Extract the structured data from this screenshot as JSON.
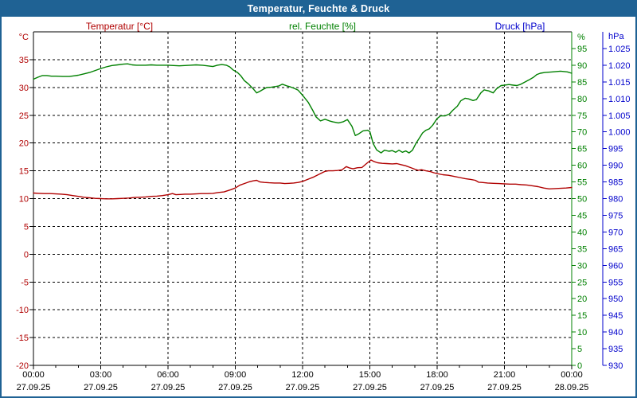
{
  "window": {
    "title": "Temperatur, Feuchte & Druck"
  },
  "legend": {
    "temperature": "Temperatur [°C]",
    "humidity": "rel. Feuchte [%]",
    "pressure": "Druck [hPa]"
  },
  "axes": {
    "temperature": {
      "unit": "°C",
      "color": "#B00000",
      "min": -20,
      "max": 40,
      "ticks": [
        {
          "label": "35",
          "value": 35
        },
        {
          "label": "30",
          "value": 30
        },
        {
          "label": "25",
          "value": 25
        },
        {
          "label": "20",
          "value": 20
        },
        {
          "label": "15",
          "value": 15
        },
        {
          "label": "10",
          "value": 10
        },
        {
          "label": "5",
          "value": 5
        },
        {
          "label": "0",
          "value": 0
        },
        {
          "label": "-5",
          "value": -5
        },
        {
          "label": "-10",
          "value": -10
        },
        {
          "label": "-15",
          "value": -15
        },
        {
          "label": "-20",
          "value": -20
        }
      ]
    },
    "humidity": {
      "unit": "%",
      "color": "#008000",
      "min": 0,
      "max": 100,
      "ticks": [
        {
          "label": "95",
          "value": 95
        },
        {
          "label": "90",
          "value": 90
        },
        {
          "label": "85",
          "value": 85
        },
        {
          "label": "80",
          "value": 80
        },
        {
          "label": "75",
          "value": 75
        },
        {
          "label": "70",
          "value": 70
        },
        {
          "label": "65",
          "value": 65
        },
        {
          "label": "60",
          "value": 60
        },
        {
          "label": "55",
          "value": 55
        },
        {
          "label": "50",
          "value": 50
        },
        {
          "label": "45",
          "value": 45
        },
        {
          "label": "40",
          "value": 40
        },
        {
          "label": "35",
          "value": 35
        },
        {
          "label": "30",
          "value": 30
        },
        {
          "label": "25",
          "value": 25
        },
        {
          "label": "20",
          "value": 20
        },
        {
          "label": "15",
          "value": 15
        },
        {
          "label": "10",
          "value": 10
        },
        {
          "label": "5",
          "value": 5
        },
        {
          "label": "0",
          "value": 0
        }
      ]
    },
    "pressure": {
      "unit": "hPa",
      "color": "#0000CC",
      "min": 930,
      "max": 1030,
      "ticks": [
        {
          "label": "1.025",
          "value": 1025
        },
        {
          "label": "1.020",
          "value": 1020
        },
        {
          "label": "1.015",
          "value": 1015
        },
        {
          "label": "1.010",
          "value": 1010
        },
        {
          "label": "1.005",
          "value": 1005
        },
        {
          "label": "1.000",
          "value": 1000
        },
        {
          "label": "995",
          "value": 995
        },
        {
          "label": "990",
          "value": 990
        },
        {
          "label": "985",
          "value": 985
        },
        {
          "label": "980",
          "value": 980
        },
        {
          "label": "975",
          "value": 975
        },
        {
          "label": "970",
          "value": 970
        },
        {
          "label": "965",
          "value": 965
        },
        {
          "label": "960",
          "value": 960
        },
        {
          "label": "955",
          "value": 955
        },
        {
          "label": "950",
          "value": 950
        },
        {
          "label": "945",
          "value": 945
        },
        {
          "label": "940",
          "value": 940
        },
        {
          "label": "935",
          "value": 935
        },
        {
          "label": "930",
          "value": 930
        }
      ]
    },
    "time": {
      "ticks": [
        {
          "label": "00:00",
          "date": "27.09.25",
          "hour": 0
        },
        {
          "label": "03:00",
          "date": "27.09.25",
          "hour": 3
        },
        {
          "label": "06:00",
          "date": "27.09.25",
          "hour": 6
        },
        {
          "label": "09:00",
          "date": "27.09.25",
          "hour": 9
        },
        {
          "label": "12:00",
          "date": "27.09.25",
          "hour": 12
        },
        {
          "label": "15:00",
          "date": "27.09.25",
          "hour": 15
        },
        {
          "label": "18:00",
          "date": "27.09.25",
          "hour": 18
        },
        {
          "label": "21:00",
          "date": "27.09.25",
          "hour": 21
        },
        {
          "label": "00:00",
          "date": "28.09.25",
          "hour": 24
        }
      ]
    }
  },
  "chart_data": {
    "type": "line",
    "title": "Temperatur, Feuchte & Druck",
    "x_axis": "time of day in hours, 27.09.25 00:00 to 28.09.25 00:00",
    "grid": true,
    "series": [
      {
        "name": "Temperatur",
        "unit": "°C",
        "axis": "temperature",
        "color": "#B00000",
        "points": [
          [
            0,
            11.0
          ],
          [
            0.25,
            10.95
          ],
          [
            0.5,
            10.9
          ],
          [
            0.75,
            10.9
          ],
          [
            1,
            10.85
          ],
          [
            1.25,
            10.8
          ],
          [
            1.5,
            10.7
          ],
          [
            1.75,
            10.55
          ],
          [
            2,
            10.4
          ],
          [
            2.25,
            10.25
          ],
          [
            2.5,
            10.15
          ],
          [
            2.75,
            10.05
          ],
          [
            3,
            10.0
          ],
          [
            3.25,
            9.95
          ],
          [
            3.5,
            9.95
          ],
          [
            3.75,
            10.0
          ],
          [
            4,
            10.05
          ],
          [
            4.25,
            10.1
          ],
          [
            4.5,
            10.2
          ],
          [
            4.75,
            10.25
          ],
          [
            5,
            10.3
          ],
          [
            5.25,
            10.4
          ],
          [
            5.5,
            10.45
          ],
          [
            5.75,
            10.55
          ],
          [
            6,
            10.7
          ],
          [
            6.2,
            10.9
          ],
          [
            6.35,
            10.7
          ],
          [
            6.55,
            10.75
          ],
          [
            6.75,
            10.8
          ],
          [
            7,
            10.8
          ],
          [
            7.25,
            10.85
          ],
          [
            7.5,
            10.9
          ],
          [
            7.75,
            10.9
          ],
          [
            8,
            10.95
          ],
          [
            8.25,
            11.1
          ],
          [
            8.5,
            11.2
          ],
          [
            8.65,
            11.4
          ],
          [
            8.8,
            11.6
          ],
          [
            9,
            11.9
          ],
          [
            9.2,
            12.4
          ],
          [
            9.4,
            12.7
          ],
          [
            9.6,
            13.0
          ],
          [
            9.8,
            13.2
          ],
          [
            9.95,
            13.3
          ],
          [
            10.1,
            13.0
          ],
          [
            10.3,
            12.9
          ],
          [
            10.5,
            12.85
          ],
          [
            10.75,
            12.8
          ],
          [
            11,
            12.8
          ],
          [
            11.2,
            12.7
          ],
          [
            11.4,
            12.75
          ],
          [
            11.6,
            12.8
          ],
          [
            11.8,
            12.9
          ],
          [
            12,
            13.1
          ],
          [
            12.25,
            13.5
          ],
          [
            12.5,
            13.9
          ],
          [
            12.75,
            14.4
          ],
          [
            13,
            14.9
          ],
          [
            13.15,
            15.0
          ],
          [
            13.35,
            15.0
          ],
          [
            13.55,
            15.05
          ],
          [
            13.75,
            15.15
          ],
          [
            13.95,
            15.75
          ],
          [
            14.1,
            15.5
          ],
          [
            14.25,
            15.35
          ],
          [
            14.45,
            15.55
          ],
          [
            14.65,
            15.6
          ],
          [
            14.85,
            16.3
          ],
          [
            15.05,
            16.95
          ],
          [
            15.2,
            16.65
          ],
          [
            15.35,
            16.45
          ],
          [
            15.55,
            16.35
          ],
          [
            15.75,
            16.3
          ],
          [
            16,
            16.25
          ],
          [
            16.2,
            16.3
          ],
          [
            16.4,
            16.1
          ],
          [
            16.6,
            15.9
          ],
          [
            16.8,
            15.6
          ],
          [
            17,
            15.3
          ],
          [
            17.15,
            15.1
          ],
          [
            17.3,
            15.2
          ],
          [
            17.5,
            15.0
          ],
          [
            17.7,
            14.85
          ],
          [
            17.85,
            14.65
          ],
          [
            18,
            14.5
          ],
          [
            18.25,
            14.3
          ],
          [
            18.5,
            14.2
          ],
          [
            18.75,
            14.0
          ],
          [
            19,
            13.8
          ],
          [
            19.25,
            13.6
          ],
          [
            19.5,
            13.45
          ],
          [
            19.7,
            13.3
          ],
          [
            19.85,
            12.95
          ],
          [
            20,
            12.9
          ],
          [
            20.25,
            12.8
          ],
          [
            20.5,
            12.75
          ],
          [
            20.75,
            12.7
          ],
          [
            21,
            12.65
          ],
          [
            21.25,
            12.6
          ],
          [
            21.5,
            12.6
          ],
          [
            21.75,
            12.5
          ],
          [
            22,
            12.45
          ],
          [
            22.25,
            12.3
          ],
          [
            22.5,
            12.15
          ],
          [
            22.75,
            11.9
          ],
          [
            23,
            11.75
          ],
          [
            23.25,
            11.8
          ],
          [
            23.5,
            11.85
          ],
          [
            23.75,
            11.9
          ],
          [
            24,
            12.0
          ]
        ]
      },
      {
        "name": "rel. Feuchte",
        "unit": "%",
        "axis": "humidity",
        "color": "#008000",
        "points": [
          [
            0,
            85.8
          ],
          [
            0.2,
            86.4
          ],
          [
            0.4,
            86.9
          ],
          [
            0.6,
            86.9
          ],
          [
            0.8,
            86.7
          ],
          [
            1,
            86.7
          ],
          [
            1.3,
            86.6
          ],
          [
            1.6,
            86.6
          ],
          [
            1.8,
            86.8
          ],
          [
            2,
            87.0
          ],
          [
            2.25,
            87.4
          ],
          [
            2.5,
            87.8
          ],
          [
            2.75,
            88.4
          ],
          [
            3,
            89.0
          ],
          [
            3.25,
            89.5
          ],
          [
            3.5,
            89.9
          ],
          [
            3.75,
            90.1
          ],
          [
            4,
            90.3
          ],
          [
            4.2,
            90.4
          ],
          [
            4.4,
            90.1
          ],
          [
            4.6,
            90.0
          ],
          [
            4.8,
            90.0
          ],
          [
            5,
            90.0
          ],
          [
            5.25,
            90.1
          ],
          [
            5.5,
            90.0
          ],
          [
            5.75,
            90.0
          ],
          [
            6,
            90.0
          ],
          [
            6.25,
            89.9
          ],
          [
            6.5,
            89.8
          ],
          [
            6.75,
            89.9
          ],
          [
            7,
            90.0
          ],
          [
            7.25,
            90.1
          ],
          [
            7.5,
            90.0
          ],
          [
            7.75,
            89.8
          ],
          [
            8,
            89.6
          ],
          [
            8.2,
            90.0
          ],
          [
            8.4,
            90.2
          ],
          [
            8.6,
            90.0
          ],
          [
            8.75,
            89.5
          ],
          [
            8.9,
            88.6
          ],
          [
            9.1,
            87.8
          ],
          [
            9.25,
            86.8
          ],
          [
            9.4,
            85.4
          ],
          [
            9.6,
            84.3
          ],
          [
            9.8,
            82.9
          ],
          [
            9.95,
            81.7
          ],
          [
            10.1,
            82.2
          ],
          [
            10.25,
            82.8
          ],
          [
            10.4,
            83.3
          ],
          [
            10.6,
            83.4
          ],
          [
            10.8,
            83.6
          ],
          [
            10.95,
            83.8
          ],
          [
            11.1,
            84.3
          ],
          [
            11.3,
            83.8
          ],
          [
            11.45,
            83.5
          ],
          [
            11.65,
            83.0
          ],
          [
            11.8,
            82.5
          ],
          [
            12,
            81.0
          ],
          [
            12.25,
            78.9
          ],
          [
            12.45,
            76.5
          ],
          [
            12.6,
            74.5
          ],
          [
            12.8,
            73.3
          ],
          [
            13,
            73.8
          ],
          [
            13.2,
            73.3
          ],
          [
            13.35,
            73.0
          ],
          [
            13.6,
            72.7
          ],
          [
            13.8,
            73.0
          ],
          [
            14,
            73.7
          ],
          [
            14.2,
            71.7
          ],
          [
            14.35,
            68.9
          ],
          [
            14.5,
            69.4
          ],
          [
            14.7,
            70.3
          ],
          [
            14.9,
            70.5
          ],
          [
            15,
            70.1
          ],
          [
            15.15,
            66.5
          ],
          [
            15.3,
            64.6
          ],
          [
            15.5,
            63.7
          ],
          [
            15.65,
            64.5
          ],
          [
            15.85,
            64.2
          ],
          [
            16,
            64.4
          ],
          [
            16.15,
            63.9
          ],
          [
            16.3,
            64.5
          ],
          [
            16.45,
            63.9
          ],
          [
            16.6,
            64.3
          ],
          [
            16.75,
            63.7
          ],
          [
            16.9,
            64.5
          ],
          [
            17.05,
            66.5
          ],
          [
            17.2,
            68.1
          ],
          [
            17.35,
            69.7
          ],
          [
            17.5,
            70.5
          ],
          [
            17.65,
            70.9
          ],
          [
            17.8,
            72.0
          ],
          [
            18,
            74.0
          ],
          [
            18.15,
            74.8
          ],
          [
            18.35,
            74.8
          ],
          [
            18.55,
            75.4
          ],
          [
            18.7,
            76.5
          ],
          [
            18.9,
            77.7
          ],
          [
            19.05,
            79.3
          ],
          [
            19.25,
            80.1
          ],
          [
            19.4,
            79.9
          ],
          [
            19.6,
            79.4
          ],
          [
            19.75,
            79.7
          ],
          [
            19.95,
            81.7
          ],
          [
            20.1,
            82.6
          ],
          [
            20.3,
            82.3
          ],
          [
            20.5,
            81.7
          ],
          [
            20.65,
            82.9
          ],
          [
            20.85,
            83.9
          ],
          [
            21,
            84.0
          ],
          [
            21.2,
            84.2
          ],
          [
            21.4,
            84.0
          ],
          [
            21.55,
            83.9
          ],
          [
            21.7,
            84.2
          ],
          [
            21.9,
            84.9
          ],
          [
            22.1,
            85.6
          ],
          [
            22.3,
            86.4
          ],
          [
            22.45,
            87.2
          ],
          [
            22.6,
            87.6
          ],
          [
            22.8,
            87.8
          ],
          [
            23.15,
            88.0
          ],
          [
            23.5,
            88.2
          ],
          [
            23.8,
            88.0
          ],
          [
            24,
            87.6
          ]
        ]
      }
    ]
  }
}
